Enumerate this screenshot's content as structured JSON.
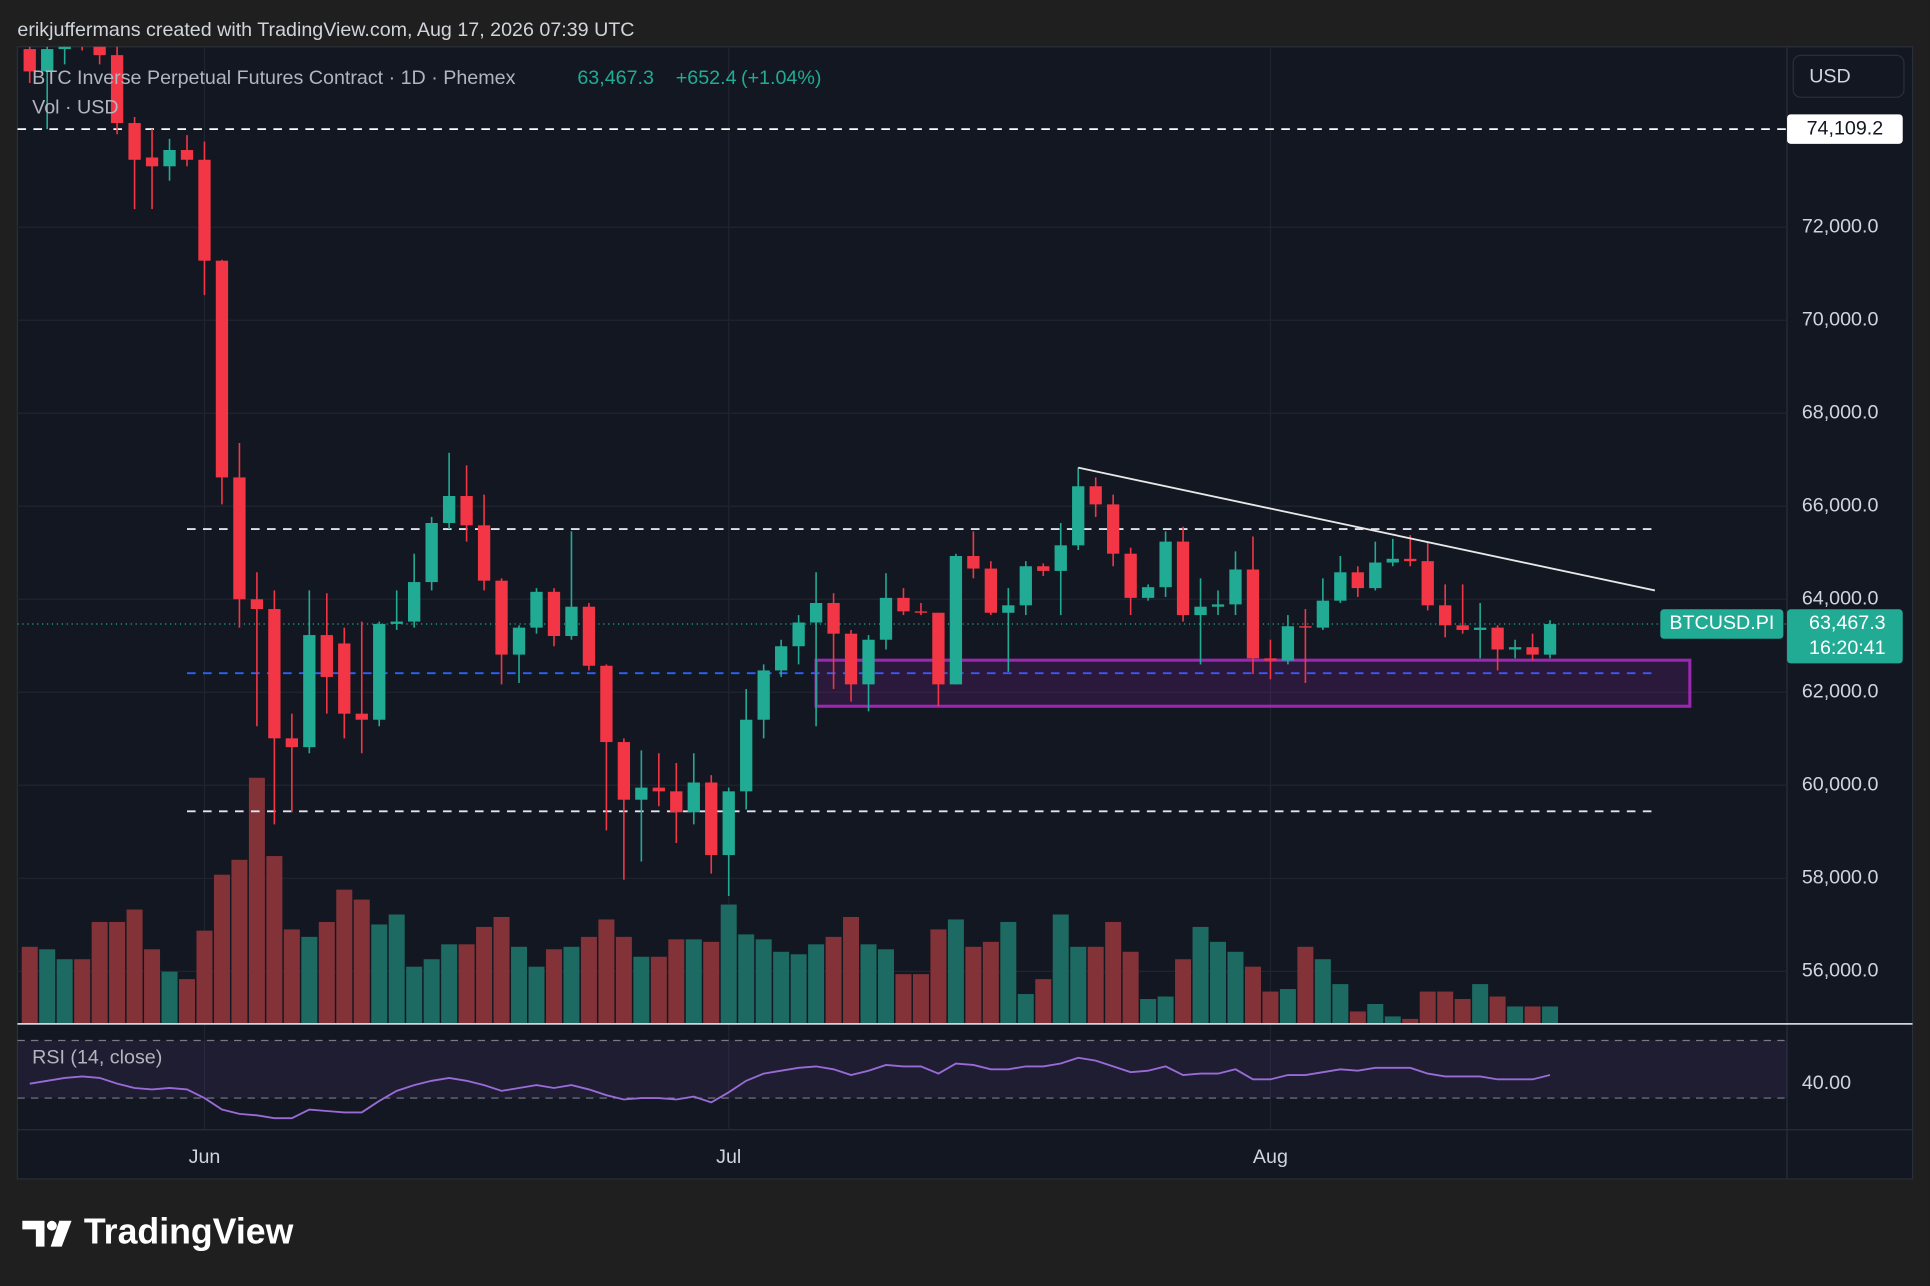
{
  "chart_data": {
    "type": "candlestick",
    "attribution": "erikjuffermans created with TradingView.com, Aug 17, 2026 07:39 UTC",
    "title": "BTC Inverse Perpetual Futures Contract · 1D · Phemex",
    "last_price": {
      "value": 63467.3,
      "label": "63,467.3"
    },
    "change": {
      "value": 652.4,
      "label": "+652.4"
    },
    "change_pct": {
      "value": 1.04,
      "label": "(+1.04%)"
    },
    "volume_label": "Vol · USD",
    "currency": "USD",
    "symbol_tag": "BTCUSD.PI",
    "countdown": "16:20:41",
    "brand": "TradingView",
    "categories": [
      null,
      null,
      null,
      null,
      null,
      null,
      null,
      null,
      null,
      null,
      "Jun",
      null,
      null,
      null,
      null,
      null,
      null,
      null,
      null,
      null,
      null,
      null,
      null,
      null,
      null,
      null,
      null,
      null,
      null,
      null,
      null,
      null,
      null,
      null,
      null,
      null,
      null,
      null,
      null,
      null,
      "Jul",
      null,
      null,
      null,
      null,
      null,
      null,
      null,
      null,
      null,
      null,
      null,
      null,
      null,
      null,
      null,
      null,
      null,
      null,
      null,
      null,
      null,
      null,
      null,
      null,
      null,
      null,
      null,
      null,
      null,
      null,
      "Aug",
      null,
      null,
      null,
      null,
      null,
      null,
      null,
      null,
      null,
      null,
      null,
      null,
      null,
      null,
      null,
      null
    ],
    "open": [
      75830,
      75350,
      75830,
      76200,
      75950,
      75700,
      74240,
      73500,
      73310,
      73660,
      73450,
      71280,
      66620,
      64000,
      63790,
      61010,
      60820,
      63230,
      63050,
      61540,
      61410,
      63470,
      63520,
      64370,
      65640,
      66220,
      65590,
      64400,
      62810,
      63390,
      64160,
      63210,
      63840,
      62570,
      60930,
      59690,
      59950,
      59870,
      59420,
      60060,
      58500,
      59870,
      61410,
      62470,
      62990,
      63500,
      63920,
      63260,
      62170,
      63130,
      64030,
      63740,
      63710,
      62170,
      64930,
      64660,
      63710,
      63870,
      64710,
      64610,
      65160,
      66430,
      66040,
      64980,
      64030,
      64260,
      65240,
      63660,
      63840,
      63890,
      64640,
      62730,
      62680,
      63420,
      63390,
      63970,
      64580,
      64240,
      64790,
      64870,
      64820,
      63870,
      63440,
      63340,
      63390,
      62920,
      62970,
      62810
    ],
    "high": [
      76000,
      76000,
      76100,
      76400,
      76100,
      75900,
      74370,
      74110,
      73900,
      73980,
      73840,
      71300,
      67360,
      64580,
      64190,
      61540,
      64190,
      64130,
      63390,
      63520,
      63520,
      64190,
      64980,
      65770,
      67150,
      66880,
      66250,
      64450,
      63440,
      64240,
      64240,
      65460,
      63920,
      62600,
      61010,
      60750,
      60690,
      60480,
      60690,
      60220,
      59950,
      62070,
      62600,
      63130,
      63660,
      64580,
      64130,
      63340,
      63230,
      64560,
      64240,
      63920,
      63710,
      64980,
      65460,
      64820,
      64240,
      64820,
      64770,
      65640,
      66830,
      66620,
      66250,
      65110,
      64320,
      65460,
      65560,
      64450,
      64190,
      65030,
      65350,
      63130,
      63660,
      63790,
      64450,
      64930,
      64710,
      65240,
      65300,
      65380,
      65240,
      64320,
      64320,
      63920,
      63440,
      63130,
      63260,
      63550
    ],
    "low": [
      75100,
      74110,
      75500,
      75800,
      75500,
      74000,
      72390,
      72390,
      73000,
      73310,
      70540,
      66040,
      63390,
      61270,
      59160,
      59420,
      60690,
      61540,
      61010,
      60690,
      61270,
      63340,
      63390,
      64190,
      65510,
      65240,
      64190,
      62170,
      62200,
      63260,
      62990,
      63130,
      62470,
      59030,
      57970,
      58360,
      59550,
      58760,
      59160,
      58100,
      57620,
      59480,
      61010,
      62330,
      62600,
      61270,
      62070,
      61800,
      61590,
      62920,
      63660,
      63660,
      61700,
      62170,
      64450,
      63660,
      62440,
      63660,
      64500,
      63660,
      65060,
      65770,
      64710,
      63660,
      63970,
      64050,
      63520,
      62600,
      63660,
      63660,
      62390,
      62280,
      62600,
      62200,
      63340,
      63920,
      64050,
      64190,
      64710,
      64710,
      63760,
      63180,
      63260,
      62730,
      62470,
      62730,
      62680,
      62730
    ],
    "close": [
      75350,
      75830,
      75900,
      75950,
      75700,
      74240,
      73450,
      73310,
      73660,
      73450,
      71280,
      66620,
      64000,
      63790,
      61010,
      60820,
      63230,
      62330,
      61540,
      61410,
      63470,
      63520,
      64370,
      65640,
      66220,
      65590,
      64400,
      62810,
      63390,
      64160,
      63210,
      63840,
      62570,
      60930,
      59690,
      59950,
      59870,
      59420,
      60060,
      58500,
      59870,
      61410,
      62470,
      62990,
      63500,
      63920,
      63260,
      62170,
      63130,
      64030,
      63740,
      63710,
      62170,
      64930,
      64660,
      63710,
      63870,
      64710,
      64610,
      65160,
      66430,
      66040,
      64980,
      64030,
      64260,
      65240,
      63660,
      63840,
      63890,
      64640,
      62730,
      62680,
      63420,
      63390,
      63970,
      64580,
      64240,
      64790,
      64870,
      64820,
      63870,
      63440,
      63340,
      63390,
      62920,
      62970,
      62810,
      63467.3
    ],
    "volume": [
      62,
      60,
      52,
      52,
      82,
      82,
      92,
      60,
      42,
      36,
      75,
      120,
      132,
      198,
      135,
      76,
      70,
      82,
      108,
      100,
      80,
      88,
      46,
      52,
      64,
      64,
      78,
      86,
      62,
      46,
      60,
      62,
      70,
      84,
      70,
      54,
      54,
      68,
      68,
      66,
      96,
      72,
      68,
      58,
      56,
      64,
      70,
      86,
      64,
      60,
      40,
      40,
      76,
      84,
      62,
      66,
      82,
      24,
      36,
      88,
      62,
      62,
      82,
      58,
      20,
      22,
      52,
      78,
      66,
      58,
      46,
      26,
      28,
      62,
      52,
      32,
      10,
      16,
      6,
      4,
      26,
      26,
      20,
      32,
      22,
      14,
      14,
      14
    ],
    "colors": {
      "up": "#22ab94",
      "down": "#f23645",
      "volume_up": "#1d6a62",
      "volume_down": "#833338"
    },
    "ylim": [
      54870,
      75880
    ],
    "yticks": [
      {
        "value": 56000,
        "label": "56,000.0"
      },
      {
        "value": 58000,
        "label": "58,000.0"
      },
      {
        "value": 60000,
        "label": "60,000.0"
      },
      {
        "value": 62000,
        "label": "62,000.0"
      },
      {
        "value": 64000,
        "label": "64,000.0"
      },
      {
        "value": 66000,
        "label": "66,000.0"
      },
      {
        "value": 68000,
        "label": "68,000.0"
      },
      {
        "value": 70000,
        "label": "70,000.0"
      },
      {
        "value": 72000,
        "label": "72,000.0"
      }
    ],
    "grid": true,
    "marked_level": {
      "value": 74109.2,
      "label": "74,109.2"
    },
    "levels": [
      {
        "price": 65510,
        "from": 9,
        "to": 93
      },
      {
        "price": 59440,
        "from": 9,
        "to": 93
      }
    ],
    "support": {
      "price": 62410,
      "from": 9,
      "to": 93,
      "color": "#2962ff"
    },
    "zone": {
      "top": 62690,
      "bottom": 61700,
      "from": 45,
      "to": 95,
      "color": "#9c27b0"
    },
    "trendline": {
      "from": [
        60,
        66830
      ],
      "to": [
        93,
        64190
      ]
    },
    "rsi": {
      "name": "RSI (14, close)",
      "color": "#9a6ad6",
      "values": [
        40,
        42,
        44,
        45,
        44,
        40,
        37,
        36,
        37,
        36,
        30,
        22,
        19,
        18,
        16,
        16,
        22,
        21,
        20,
        20,
        28,
        35,
        39,
        42,
        44,
        42,
        39,
        35,
        37,
        39,
        37,
        39,
        36,
        32,
        29,
        30,
        30,
        29,
        31,
        27,
        34,
        42,
        47,
        49,
        51,
        52,
        50,
        46,
        49,
        53,
        52,
        52,
        47,
        54,
        53,
        50,
        50,
        52,
        52,
        54,
        58,
        56,
        52,
        48,
        49,
        52,
        46,
        47,
        47,
        50,
        43,
        43,
        46,
        46,
        48,
        50,
        49,
        51,
        51,
        51,
        47,
        45,
        45,
        45,
        43,
        43,
        43,
        46
      ],
      "ylim": [
        8,
        73
      ],
      "bands": [
        30,
        70
      ],
      "yticks": [
        {
          "value": 40,
          "label": "40.00"
        }
      ]
    }
  }
}
